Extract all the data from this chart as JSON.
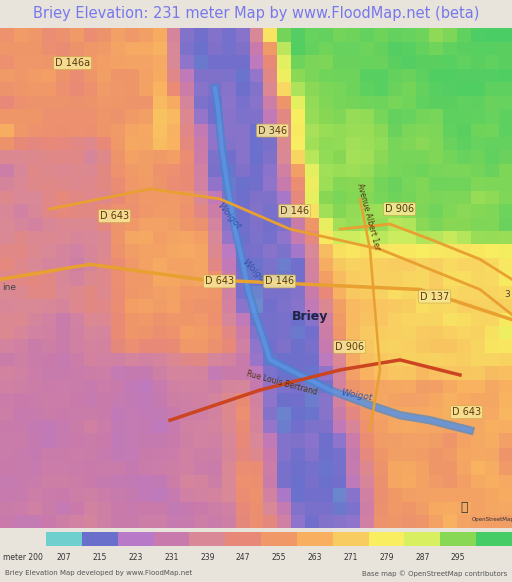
{
  "title": "Briey Elevation: 231 meter Map by www.FloodMap.net (beta)",
  "title_color": "#7777ee",
  "title_fontsize": 10.5,
  "bg_color": "#e8e4dc",
  "colorbar_labels": [
    "meter 200",
    "207",
    "215",
    "223",
    "231",
    "239",
    "247",
    "255",
    "263",
    "271",
    "279",
    "287",
    "295"
  ],
  "colorbar_values": [
    200,
    207,
    215,
    223,
    231,
    239,
    247,
    255,
    263,
    271,
    279,
    287,
    295
  ],
  "colorbar_colors": [
    "#6ecfce",
    "#6b6fcc",
    "#b87ac8",
    "#c87aac",
    "#d98898",
    "#e88878",
    "#f09868",
    "#f8b060",
    "#f8cc60",
    "#f8ee60",
    "#d8f060",
    "#88d855",
    "#44cc66"
  ],
  "footer_left": "Briey Elevation Map developed by www.FloodMap.net",
  "footer_right": "Base map © OpenStreetMap contributors",
  "figsize": [
    5.12,
    5.82
  ],
  "dpi": 100
}
